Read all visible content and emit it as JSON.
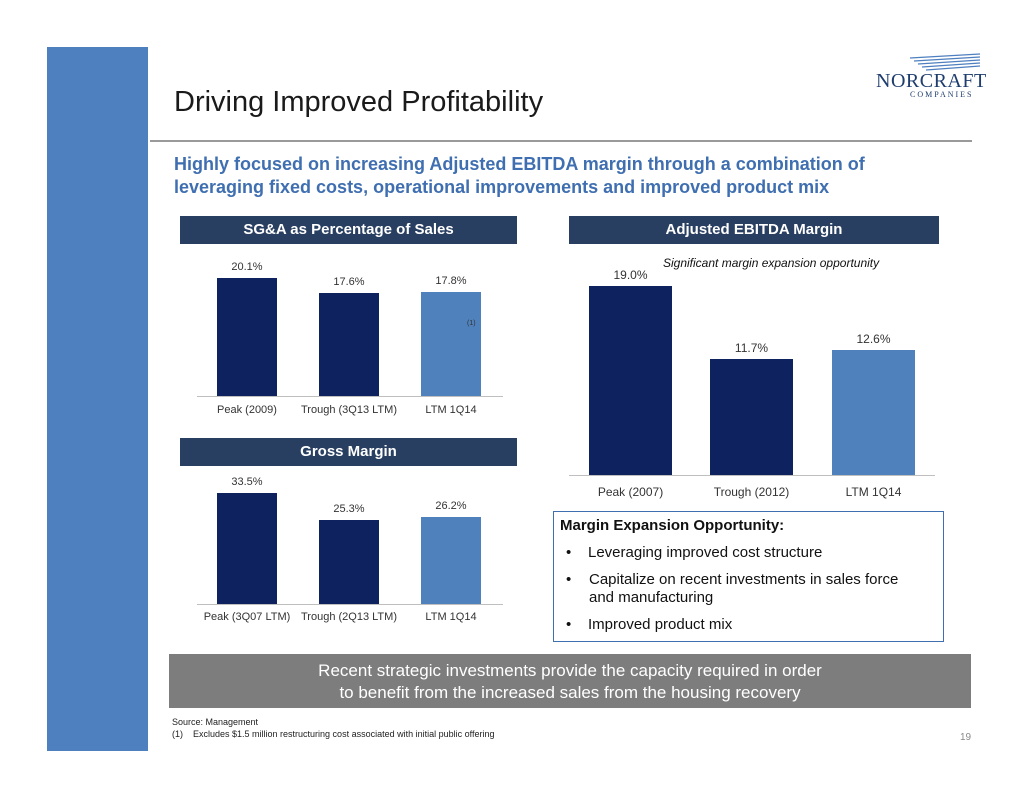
{
  "title": "Driving Improved Profitability",
  "subtitle": "Highly focused on increasing Adjusted EBITDA margin through a combination of leveraging fixed costs, operational improvements and improved product mix",
  "logo": {
    "name": "NORCRAFT",
    "sub": "COMPANIES"
  },
  "charts": {
    "sga": {
      "header": "SG&A as Percentage of Sales",
      "footnote_marker": "(1)"
    },
    "gross": {
      "header": "Gross Margin"
    },
    "ebitda": {
      "header": "Adjusted EBITDA Margin",
      "annotation": "Significant margin expansion opportunity"
    }
  },
  "chart_data": [
    {
      "type": "bar",
      "title": "SG&A as Percentage of Sales",
      "categories": [
        "Peak (2009)",
        "Trough (3Q13 LTM)",
        "LTM 1Q14"
      ],
      "values": [
        20.1,
        17.6,
        17.8
      ],
      "labels": [
        "20.1%",
        "17.6%",
        "17.8%"
      ],
      "colors": [
        "#0f2260",
        "#0f2260",
        "#4f81bd"
      ]
    },
    {
      "type": "bar",
      "title": "Gross Margin",
      "categories": [
        "Peak (3Q07 LTM)",
        "Trough (2Q13 LTM)",
        "LTM 1Q14"
      ],
      "values": [
        33.5,
        25.3,
        26.2
      ],
      "labels": [
        "33.5%",
        "25.3%",
        "26.2%"
      ],
      "colors": [
        "#0f2260",
        "#0f2260",
        "#4f81bd"
      ]
    },
    {
      "type": "bar",
      "title": "Adjusted EBITDA Margin",
      "categories": [
        "Peak (2007)",
        "Trough (2012)",
        "LTM 1Q14"
      ],
      "values": [
        19.0,
        11.7,
        12.6
      ],
      "labels": [
        "19.0%",
        "11.7%",
        "12.6%"
      ],
      "colors": [
        "#0f2260",
        "#0f2260",
        "#4f81bd"
      ]
    }
  ],
  "opportunity": {
    "title": "Margin Expansion Opportunity:",
    "bullets": [
      "Leveraging improved cost structure",
      "Capitalize on recent investments in sales force and manufacturing",
      "Improved product mix"
    ]
  },
  "banner": {
    "line1": "Recent strategic investments provide the capacity required in order",
    "line2": "to benefit from the increased sales from the housing recovery"
  },
  "footer": {
    "source": "Source: Management",
    "note_marker": "(1)",
    "note_text": "Excludes $1.5 million restructuring cost associated with initial public offering"
  },
  "page_number": "19"
}
